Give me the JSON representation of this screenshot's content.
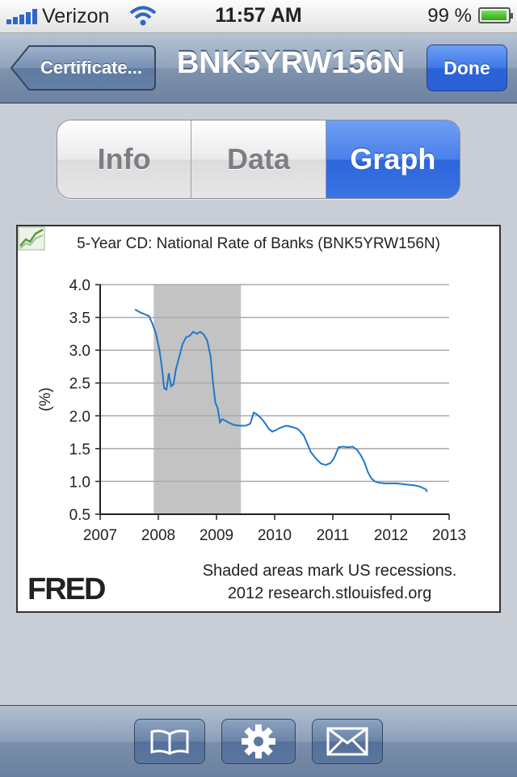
{
  "status_bar": {
    "carrier": "Verizon",
    "time": "11:57 AM",
    "battery": "99 %",
    "battery_level": 0.99
  },
  "nav": {
    "back_label": "Certificate...",
    "title": "BNK5YRW156N",
    "done_label": "Done"
  },
  "segments": [
    {
      "label": "Info",
      "active": false
    },
    {
      "label": "Data",
      "active": false
    },
    {
      "label": "Graph",
      "active": true
    }
  ],
  "chart": {
    "logo": "FRED",
    "credit_line1": "Shaded areas mark US recessions.",
    "credit_line2": "2012 research.stlouisfed.org"
  },
  "chart_data": {
    "type": "line",
    "title": "5-Year CD: National Rate of Banks (BNK5YRW156N)",
    "xlabel": "",
    "ylabel": "(%)",
    "xlim": [
      2007,
      2013
    ],
    "ylim": [
      0.5,
      4.0
    ],
    "xticks": [
      "2007",
      "2008",
      "2009",
      "2010",
      "2011",
      "2012",
      "2013"
    ],
    "yticks": [
      "4.0",
      "3.5",
      "3.0",
      "2.5",
      "2.0",
      "1.5",
      "1.0",
      "0.5"
    ],
    "recession": [
      2007.92,
      2009.42
    ],
    "grid": true,
    "line_color": "#1f77c9",
    "series": [
      {
        "x": [
          2007.6,
          2007.68,
          2007.76,
          2007.84,
          2007.9,
          2007.96,
          2008.02,
          2008.06,
          2008.1,
          2008.14,
          2008.18,
          2008.22,
          2008.26,
          2008.3,
          2008.36,
          2008.42,
          2008.48,
          2008.54,
          2008.6,
          2008.66,
          2008.72,
          2008.78,
          2008.84,
          2008.9,
          2008.94,
          2008.98,
          2009.02,
          2009.06,
          2009.1,
          2009.2,
          2009.3,
          2009.4,
          2009.5,
          2009.58,
          2009.64,
          2009.7,
          2009.78,
          2009.84,
          2009.9,
          2009.96,
          2010.02,
          2010.1,
          2010.2,
          2010.3,
          2010.4,
          2010.5,
          2010.56,
          2010.62,
          2010.68,
          2010.74,
          2010.8,
          2010.88,
          2010.96,
          2011.02,
          2011.1,
          2011.18,
          2011.26,
          2011.34,
          2011.42,
          2011.48,
          2011.54,
          2011.6,
          2011.66,
          2011.72,
          2011.8,
          2011.9,
          2012.0,
          2012.1,
          2012.2,
          2012.3,
          2012.4,
          2012.5,
          2012.6,
          2012.62
        ],
        "y": [
          3.62,
          3.58,
          3.55,
          3.52,
          3.4,
          3.25,
          3.0,
          2.75,
          2.42,
          2.4,
          2.65,
          2.45,
          2.48,
          2.7,
          2.9,
          3.1,
          3.2,
          3.22,
          3.28,
          3.25,
          3.28,
          3.24,
          3.15,
          2.9,
          2.5,
          2.2,
          2.12,
          1.9,
          1.95,
          1.9,
          1.86,
          1.85,
          1.85,
          1.88,
          2.05,
          2.02,
          1.95,
          1.88,
          1.8,
          1.76,
          1.78,
          1.82,
          1.85,
          1.83,
          1.8,
          1.7,
          1.58,
          1.45,
          1.38,
          1.32,
          1.27,
          1.25,
          1.28,
          1.35,
          1.52,
          1.53,
          1.52,
          1.53,
          1.48,
          1.4,
          1.3,
          1.15,
          1.05,
          1.0,
          0.98,
          0.97,
          0.97,
          0.97,
          0.96,
          0.95,
          0.94,
          0.92,
          0.88,
          0.84
        ]
      }
    ]
  }
}
